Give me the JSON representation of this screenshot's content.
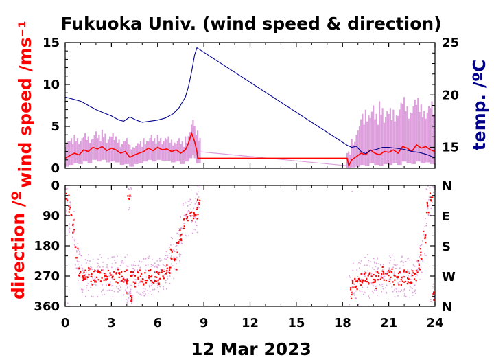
{
  "chart_data": [
    {
      "type": "line",
      "title": "Fukuoka Univ. (wind speed & direction)",
      "ylabel": "wind speed /ms⁻¹",
      "y2label": "temp. /ºC",
      "xlabel": "12 Mar 2023",
      "xlim": [
        0,
        24
      ],
      "ylim": [
        0,
        15
      ],
      "y2lim": [
        13,
        25
      ],
      "x_ticks": [
        "0",
        "3",
        "6",
        "9",
        "12",
        "15",
        "18",
        "21",
        "24"
      ],
      "y_ticks": [
        "0",
        "5",
        "10",
        "15"
      ],
      "y2_ticks": [
        "15",
        "20",
        "25"
      ],
      "colors": {
        "speed": "#ff0000",
        "speed_raw": "#dda0dd",
        "temp": "#00008b"
      },
      "series": [
        {
          "role": "temp",
          "x": [
            0.0,
            0.5,
            1.0,
            1.5,
            2.0,
            2.5,
            3.0,
            3.5,
            3.8,
            4.2,
            4.6,
            5.0,
            5.5,
            6.0,
            6.5,
            7.0,
            7.4,
            7.8,
            8.0,
            8.2,
            8.4,
            8.55,
            18.3,
            18.6,
            18.9,
            19.2,
            19.5,
            19.8,
            20.2,
            20.6,
            21.0,
            21.5,
            22.0,
            22.5,
            23.0,
            23.5,
            24.0
          ],
          "y": [
            19.8,
            19.6,
            19.4,
            19.0,
            18.6,
            18.3,
            18.0,
            17.6,
            17.5,
            17.9,
            17.6,
            17.4,
            17.5,
            17.6,
            17.8,
            18.2,
            18.8,
            19.8,
            20.8,
            22.2,
            23.8,
            24.5,
            15.2,
            15.0,
            15.1,
            14.6,
            14.4,
            14.7,
            14.8,
            15.0,
            15.0,
            14.9,
            14.8,
            14.6,
            14.5,
            14.3,
            14.0
          ]
        },
        {
          "role": "speed",
          "x": [
            0.0,
            0.3,
            0.6,
            0.9,
            1.2,
            1.5,
            1.8,
            2.1,
            2.4,
            2.7,
            3.0,
            3.3,
            3.6,
            3.9,
            4.2,
            4.5,
            4.8,
            5.1,
            5.4,
            5.7,
            6.0,
            6.3,
            6.6,
            6.9,
            7.2,
            7.5,
            7.8,
            8.0,
            8.2,
            8.4,
            8.55,
            8.6,
            18.3,
            18.4,
            18.6,
            18.9,
            19.2,
            19.5,
            19.8,
            20.1,
            20.4,
            20.7,
            21.0,
            21.3,
            21.6,
            21.9,
            22.2,
            22.5,
            22.8,
            23.1,
            23.4,
            23.7,
            24.0
          ],
          "y": [
            1.2,
            1.5,
            1.8,
            1.6,
            2.2,
            2.0,
            2.5,
            2.3,
            2.6,
            2.1,
            2.4,
            2.2,
            1.8,
            2.0,
            1.3,
            1.6,
            1.8,
            2.0,
            2.4,
            2.1,
            2.5,
            2.2,
            2.3,
            2.0,
            2.2,
            1.8,
            2.2,
            3.0,
            4.2,
            3.2,
            2.0,
            1.2,
            1.2,
            0.3,
            1.0,
            1.4,
            1.8,
            1.6,
            2.2,
            1.8,
            1.6,
            2.0,
            1.9,
            2.2,
            1.8,
            2.6,
            2.4,
            2.0,
            2.8,
            2.4,
            2.6,
            2.2,
            2.0
          ]
        },
        {
          "role": "speed_raw",
          "x": [
            0.0,
            0.3,
            0.6,
            0.9,
            1.2,
            1.5,
            1.8,
            2.1,
            2.4,
            2.7,
            3.0,
            3.3,
            3.6,
            3.9,
            4.2,
            4.5,
            4.8,
            5.1,
            5.4,
            5.7,
            6.0,
            6.3,
            6.6,
            6.9,
            7.2,
            7.5,
            7.8,
            8.0,
            8.2,
            8.4,
            8.55,
            18.3,
            18.6,
            18.9,
            19.2,
            19.5,
            19.8,
            20.1,
            20.4,
            20.7,
            21.0,
            21.3,
            21.6,
            21.9,
            22.2,
            22.5,
            22.8,
            23.1,
            23.4,
            23.7,
            24.0
          ],
          "low": [
            0.2,
            0.4,
            0.6,
            0.5,
            0.8,
            0.6,
            1.0,
            0.8,
            1.0,
            0.7,
            0.8,
            0.7,
            0.4,
            0.5,
            0.2,
            0.5,
            0.6,
            0.8,
            1.0,
            0.8,
            1.0,
            0.9,
            0.9,
            0.7,
            0.8,
            0.5,
            0.8,
            1.2,
            1.6,
            1.2,
            0.6,
            0.0,
            0.1,
            0.2,
            0.4,
            0.3,
            0.6,
            0.4,
            0.3,
            0.5,
            0.4,
            0.6,
            0.4,
            0.8,
            0.6,
            0.5,
            0.8,
            0.6,
            0.7,
            0.5,
            0.4
          ],
          "high": [
            3.2,
            3.6,
            4.0,
            3.6,
            4.2,
            3.8,
            4.4,
            4.0,
            4.6,
            3.8,
            4.2,
            3.8,
            3.2,
            3.6,
            2.8,
            3.0,
            3.2,
            3.6,
            4.0,
            3.6,
            4.0,
            3.6,
            3.8,
            3.4,
            3.6,
            3.2,
            3.8,
            4.8,
            5.8,
            5.0,
            3.6,
            2.0,
            3.5,
            5.0,
            6.5,
            7.0,
            7.5,
            6.5,
            8.0,
            6.8,
            7.2,
            7.0,
            7.8,
            8.5,
            7.4,
            8.2,
            8.4,
            7.6,
            7.4,
            8.0,
            6.5
          ]
        },
        {
          "role": "speed_gap",
          "x": [
            8.6,
            18.3
          ],
          "y": [
            2.0,
            0.3
          ]
        }
      ]
    },
    {
      "type": "scatter",
      "ylabel": "direction /º",
      "xlim": [
        0,
        24
      ],
      "ylim": [
        0,
        360
      ],
      "y_ticks": [
        "0",
        "90",
        "180",
        "270",
        "360"
      ],
      "y2_ticks": [
        "N",
        "E",
        "S",
        "W",
        "N"
      ],
      "series": [
        {
          "role": "direction",
          "x": [
            0.0,
            0.2,
            0.4,
            0.6,
            0.8,
            1.0,
            1.2,
            1.4,
            1.6,
            1.8,
            2.0,
            2.2,
            2.4,
            2.6,
            2.8,
            3.0,
            3.2,
            3.4,
            3.6,
            3.8,
            3.9,
            4.0,
            4.1,
            4.2,
            4.4,
            4.6,
            4.8,
            5.0,
            5.2,
            5.4,
            5.6,
            5.8,
            6.0,
            6.2,
            6.4,
            6.6,
            6.8,
            7.0,
            7.2,
            7.4,
            7.6,
            7.8,
            8.0,
            8.2,
            8.4,
            8.5,
            18.4,
            18.6,
            18.8,
            19.0,
            19.2,
            19.4,
            19.6,
            19.8,
            20.0,
            20.2,
            20.4,
            20.6,
            20.8,
            21.0,
            21.2,
            21.4,
            21.6,
            21.8,
            22.0,
            22.2,
            22.4,
            22.6,
            22.8,
            23.0,
            23.2,
            23.4,
            23.6,
            23.8,
            24.0
          ],
          "y": [
            40,
            80,
            120,
            200,
            250,
            260,
            270,
            262,
            275,
            268,
            272,
            265,
            270,
            268,
            275,
            270,
            268,
            272,
            270,
            265,
            300,
            20,
            340,
            275,
            280,
            270,
            272,
            275,
            270,
            268,
            272,
            270,
            275,
            268,
            255,
            240,
            200,
            230,
            180,
            150,
            110,
            90,
            85,
            95,
            80,
            60,
            320,
            290,
            300,
            280,
            270,
            265,
            275,
            270,
            285,
            270,
            260,
            275,
            270,
            265,
            280,
            270,
            275,
            268,
            272,
            275,
            270,
            260,
            240,
            200,
            150,
            60,
            30,
            330,
            350
          ]
        }
      ]
    }
  ]
}
